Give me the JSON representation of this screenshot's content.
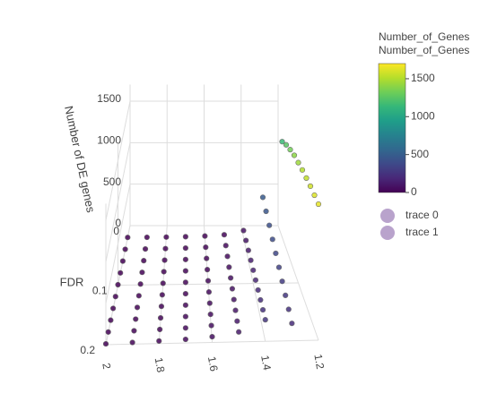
{
  "chart_data": {
    "type": "scatter3d",
    "zaxis_title": "Number of DE genes",
    "yaxis_title": "FDR",
    "xlim": [
      2,
      1.2
    ],
    "xticks": [
      2,
      1.8,
      1.6,
      1.4,
      1.2
    ],
    "ylim": [
      0,
      0.2
    ],
    "yticks": [
      0,
      0.1,
      0.2
    ],
    "zlim": [
      0,
      1700
    ],
    "zticks": [
      0,
      500,
      1000,
      1500
    ],
    "grid": true,
    "colorbar_titles": [
      "Number_of_Genes",
      "Number_of_Genes"
    ],
    "clim": [
      0,
      1700
    ],
    "cticks": [
      0,
      500,
      1000,
      1500
    ],
    "colorscale": [
      "#440154",
      "#482878",
      "#3e4989",
      "#31688e",
      "#26828e",
      "#1f9e89",
      "#35b779",
      "#6ece58",
      "#b5de2b",
      "#fde725"
    ],
    "legend_color": "#b9a3cc",
    "series": [
      {
        "name": "trace 0",
        "x": [
          2,
          2,
          2,
          2,
          2,
          2,
          2,
          2,
          2,
          2,
          1.9,
          1.9,
          1.9,
          1.9,
          1.9,
          1.9,
          1.9,
          1.9,
          1.9,
          1.9,
          1.8,
          1.8,
          1.8,
          1.8,
          1.8,
          1.8,
          1.8,
          1.8,
          1.8,
          1.8,
          1.7,
          1.7,
          1.7,
          1.7,
          1.7,
          1.7,
          1.7,
          1.7,
          1.7,
          1.7,
          1.6,
          1.6,
          1.6,
          1.6,
          1.6,
          1.6,
          1.6,
          1.6,
          1.6,
          1.6,
          1.5,
          1.5,
          1.5,
          1.5,
          1.5,
          1.5,
          1.5,
          1.5,
          1.5,
          1.5,
          1.4,
          1.4,
          1.4,
          1.4,
          1.4,
          1.4,
          1.4,
          1.4,
          1.4,
          1.4
        ],
        "y": [
          0.02,
          0.04,
          0.06,
          0.08,
          0.1,
          0.12,
          0.14,
          0.16,
          0.18,
          0.2,
          0.02,
          0.04,
          0.06,
          0.08,
          0.1,
          0.12,
          0.14,
          0.16,
          0.18,
          0.2,
          0.02,
          0.04,
          0.06,
          0.08,
          0.1,
          0.12,
          0.14,
          0.16,
          0.18,
          0.2,
          0.02,
          0.04,
          0.06,
          0.08,
          0.1,
          0.12,
          0.14,
          0.16,
          0.18,
          0.2,
          0.02,
          0.04,
          0.06,
          0.08,
          0.1,
          0.12,
          0.14,
          0.16,
          0.18,
          0.2,
          0.02,
          0.04,
          0.06,
          0.08,
          0.1,
          0.12,
          0.14,
          0.16,
          0.18,
          0.2,
          0.02,
          0.04,
          0.06,
          0.08,
          0.1,
          0.12,
          0.14,
          0.16,
          0.18,
          0.2
        ],
        "z": [
          1,
          2,
          3,
          4,
          5,
          6,
          7,
          8,
          9,
          10,
          2,
          4,
          6,
          8,
          10,
          12,
          14,
          16,
          18,
          20,
          4,
          7,
          10,
          13,
          16,
          19,
          22,
          25,
          28,
          31,
          8,
          12,
          16,
          20,
          24,
          28,
          32,
          36,
          40,
          44,
          15,
          21,
          27,
          33,
          39,
          45,
          51,
          57,
          63,
          69,
          30,
          40,
          50,
          60,
          70,
          80,
          90,
          100,
          110,
          120,
          80,
          100,
          120,
          140,
          160,
          180,
          200,
          220,
          240,
          260
        ]
      },
      {
        "name": "trace 1",
        "x": [
          1.3,
          1.3,
          1.3,
          1.3,
          1.3,
          1.3,
          1.3,
          1.3,
          1.3,
          1.3,
          1.2,
          1.2,
          1.2,
          1.2,
          1.2,
          1.2,
          1.2,
          1.2,
          1.2,
          1.2
        ],
        "y": [
          0.02,
          0.04,
          0.06,
          0.08,
          0.1,
          0.12,
          0.14,
          0.16,
          0.18,
          0.2,
          0.02,
          0.04,
          0.06,
          0.08,
          0.1,
          0.12,
          0.14,
          0.16,
          0.18,
          0.2
        ],
        "z": [
          480,
          450,
          420,
          390,
          360,
          330,
          300,
          270,
          240,
          210,
          1150,
          1250,
          1330,
          1400,
          1450,
          1500,
          1540,
          1580,
          1610,
          1640
        ]
      }
    ]
  }
}
